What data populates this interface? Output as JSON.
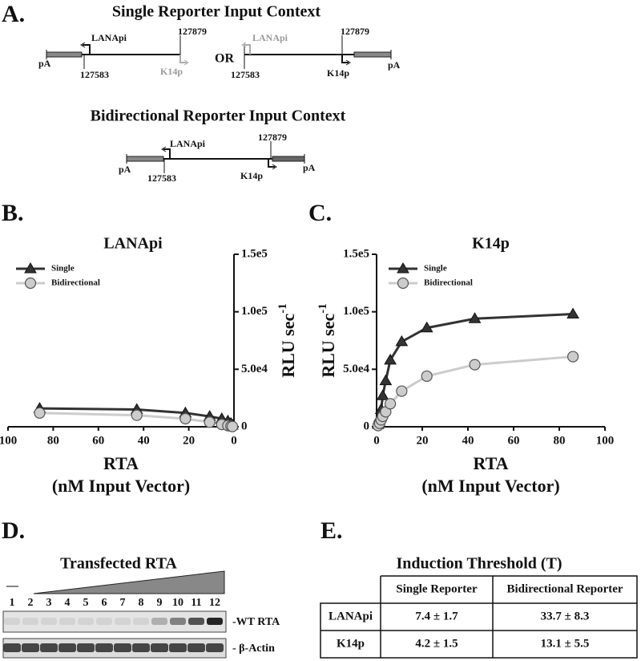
{
  "panel_a": {
    "label": "A.",
    "single_title": "Single Reporter Input Context",
    "single_left": [
      "LANApi",
      127879,
      "pA",
      127583,
      "K14p"
    ],
    "or": "OR",
    "single_right": [
      "LANApi",
      127879,
      127583,
      "K14p",
      "pA"
    ],
    "bidirectional_title": "Bidirectional Reporter Input Context",
    "bidirectional": [
      "LANApi",
      127879,
      "pA",
      127583,
      "K14p",
      "pA"
    ]
  },
  "panel_b": {
    "label": "B."
  },
  "panel_c": {
    "label": "C."
  },
  "chart_data": [
    {
      "type": "line",
      "title": "LANApi",
      "x_label": "RTA",
      "x_sublabel": "(nM Input Vector)",
      "y_label": "RLU sec",
      "y_label_exponent": "-1",
      "y_axis_side": "right",
      "legend": "upper left",
      "x": [
        86,
        43,
        21.5,
        10.75,
        5.4,
        2.7,
        1.35,
        0.67
      ],
      "series": [
        {
          "name": "Single",
          "color": "#333333",
          "marker": "triangle",
          "values": [
            16000,
            15000,
            12000,
            9000,
            7000,
            5000,
            3000,
            1500
          ]
        },
        {
          "name": "Bidirectional",
          "color": "#cccccc",
          "marker": "circle",
          "values": [
            12000,
            10000,
            7000,
            4000,
            2000,
            1000,
            500,
            200
          ]
        }
      ],
      "xlim": [
        100,
        0
      ],
      "xticks": [
        100,
        80,
        60,
        40,
        20,
        0
      ],
      "ylim": [
        0,
        150000
      ],
      "yticks": [
        0,
        {
          "value": 50000,
          "label": "5.0e4"
        },
        {
          "value": 100000,
          "label": "1.0e5"
        },
        {
          "value": 150000,
          "label": "1.5e5"
        }
      ]
    },
    {
      "type": "line",
      "title": "K14p",
      "x_label": "RTA",
      "x_sublabel": "(nM Input Vector)",
      "y_label": "RLU sec",
      "y_label_exponent": "-1",
      "y_axis_side": "left",
      "legend": "upper left",
      "x": [
        0.67,
        1.35,
        2,
        2.7,
        4,
        6,
        11,
        22,
        43,
        86
      ],
      "series": [
        {
          "name": "Single",
          "color": "#333333",
          "marker": "triangle",
          "values": [
            2000,
            8000,
            15000,
            27000,
            40000,
            58000,
            74000,
            86000,
            94000,
            98000
          ]
        },
        {
          "name": "Bidirectional",
          "color": "#cccccc",
          "marker": "circle",
          "values": [
            1000,
            3000,
            6000,
            9000,
            13000,
            20000,
            31000,
            44000,
            54000,
            61000
          ]
        }
      ],
      "xlim": [
        0,
        100
      ],
      "xticks": [
        0,
        20,
        40,
        60,
        80,
        100
      ],
      "ylim": [
        0,
        150000
      ],
      "yticks": [
        0,
        {
          "value": 50000,
          "label": "5.0e4"
        },
        {
          "value": 100000,
          "label": "1.0e5"
        },
        {
          "value": 150000,
          "label": "1.5e5"
        }
      ]
    }
  ],
  "panel_d": {
    "label": "D.",
    "title": "Transfected RTA",
    "dash": "—",
    "lanes": [
      1,
      2,
      3,
      4,
      5,
      6,
      7,
      8,
      9,
      10,
      11,
      12
    ],
    "band_1": "-WT RTA",
    "band_2": "- β-Actin"
  },
  "panel_e": {
    "label": "E.",
    "title": "Induction Threshold (T)",
    "table": {
      "header": [
        "Single Reporter",
        "Bidirectional Reporter"
      ],
      "rows": [
        [
          "LANApi",
          "7.4 ± 1.7",
          "33.7 ± 8.3"
        ],
        [
          "K14p",
          "4.2 ± 1.5",
          "13.1 ± 5.5"
        ]
      ]
    }
  }
}
